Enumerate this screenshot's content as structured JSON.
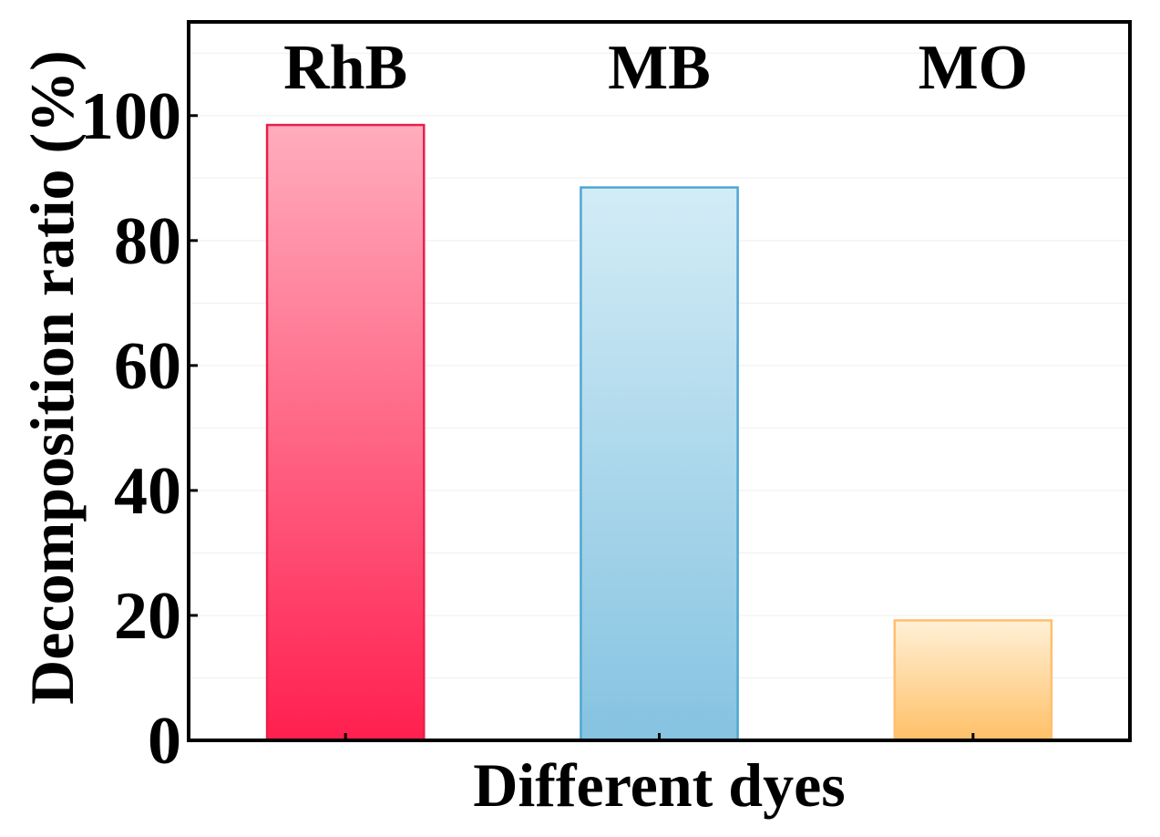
{
  "chart_data": {
    "type": "bar",
    "categories": [
      "RhB",
      "MB",
      "MO"
    ],
    "values": [
      98.5,
      88.5,
      19.2
    ],
    "xlabel": "Different dyes",
    "ylabel": "Decomposition ratio (%)",
    "ylim": [
      0,
      115
    ],
    "yticks": [
      "0",
      "20",
      "40",
      "60",
      "80",
      "100"
    ],
    "grid": true,
    "legend": "none",
    "colors": {
      "RhB": {
        "top": "#ffadbd",
        "bottom": "#ff1f4f",
        "stroke": "#e8204a"
      },
      "MB": {
        "top": "#d3ecf6",
        "bottom": "#85c3e1",
        "stroke": "#4fa6d4"
      },
      "MO": {
        "top": "#fff0d6",
        "bottom": "#ffc068",
        "stroke": "#ffbf70"
      }
    }
  }
}
